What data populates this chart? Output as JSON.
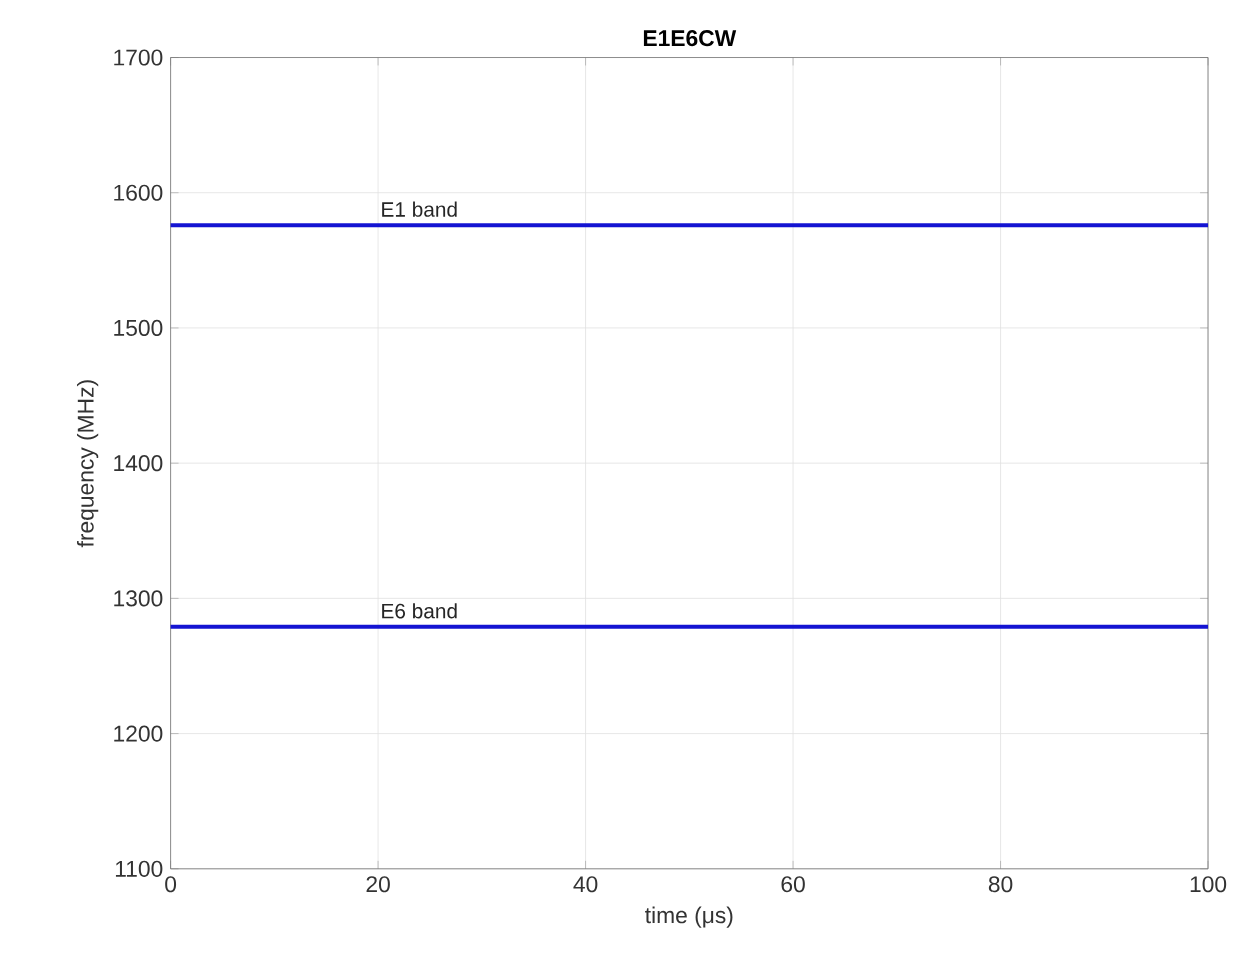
{
  "chart_data": {
    "type": "line",
    "title": "E1E6CW",
    "xlabel": "time (μs)",
    "ylabel": "frequency (MHz)",
    "x": [
      0,
      100
    ],
    "series": [
      {
        "color": "#1414d2",
        "values": [
          1576,
          1576
        ]
      },
      {
        "color": "#1414d2",
        "values": [
          1279,
          1279
        ]
      }
    ],
    "xlim": [
      0,
      100
    ],
    "xticks": [
      0,
      20,
      40,
      60,
      80,
      100
    ],
    "ylim": [
      1100,
      1700
    ],
    "yticks": [
      1100,
      1200,
      1300,
      1400,
      1500,
      1600,
      1700
    ],
    "grid": true,
    "line_style": "solid",
    "annotations": [
      {
        "text": "E1 band",
        "x": 20,
        "y": 1576
      },
      {
        "text": "E6 band",
        "x": 20,
        "y": 1279
      }
    ]
  }
}
